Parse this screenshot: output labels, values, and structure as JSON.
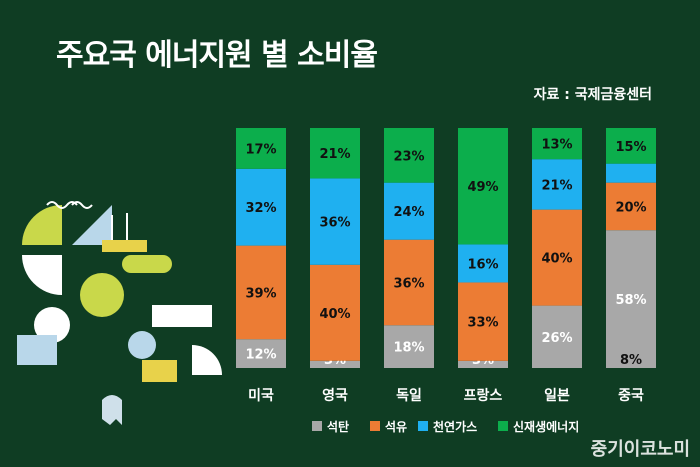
{
  "title": "주요국 에너지원 별 소비율",
  "source": "자료 : 국제금융센터",
  "watermark": "중기이코노미",
  "colors": {
    "background": "#0f3d23",
    "석탄": "#a8a8a8",
    "석유": "#ec7c34",
    "천연가스": "#1fb0f0",
    "신재생에너지": "#0cae4c"
  },
  "chart_data": {
    "type": "bar",
    "stacked": true,
    "normalized": true,
    "categories": [
      "미국",
      "영국",
      "독일",
      "프랑스",
      "일본",
      "중국"
    ],
    "series": [
      {
        "name": "석탄",
        "values": [
          12,
          3,
          18,
          3,
          26,
          58
        ]
      },
      {
        "name": "석유",
        "values": [
          39,
          40,
          36,
          33,
          40,
          20
        ]
      },
      {
        "name": "천연가스",
        "values": [
          32,
          36,
          24,
          16,
          21,
          8
        ]
      },
      {
        "name": "신재생에너지",
        "values": [
          17,
          21,
          23,
          49,
          13,
          15
        ]
      }
    ],
    "labels": [
      "12%",
      "39%",
      "32%",
      "17%"
    ],
    "legend": "bottom",
    "ylim": [
      0,
      100
    ]
  }
}
